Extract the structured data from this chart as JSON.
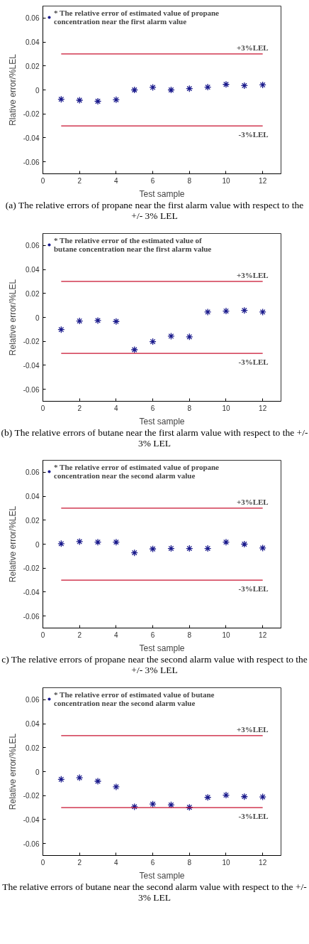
{
  "chart_data": [
    {
      "type": "scatter",
      "title": "(a) The relative errors of propane near the first alarm value with respect to the +/- 3% LEL",
      "xlabel": "Test sample",
      "ylabel": "Rlative error/%LEL",
      "x": [
        1,
        2,
        3,
        4,
        5,
        6,
        7,
        8,
        9,
        10,
        11,
        12
      ],
      "series": [
        {
          "name": "* The relative error of estimated value of propane concentration near the first alarm value",
          "color": "#1a1a8c",
          "marker": "cross",
          "values": [
            -0.0078,
            -0.0086,
            -0.0095,
            -0.0082,
            0,
            0.0021,
            0,
            0.0011,
            0.0023,
            0.0046,
            0.0036,
            0.0042
          ]
        }
      ],
      "ref_lines": [
        {
          "axis": "y",
          "value": 0.03,
          "label": "+3%LEL",
          "color": "#c8102e"
        },
        {
          "axis": "y",
          "value": -0.03,
          "label": "-3%LEL",
          "color": "#c8102e"
        }
      ],
      "xlim": [
        0,
        13
      ],
      "xticks": [
        0,
        2,
        4,
        6,
        8,
        10,
        12
      ],
      "ylim": [
        -0.07,
        0.07
      ],
      "yticks": [
        -0.06,
        -0.04,
        -0.02,
        0,
        0.02,
        0.04,
        0.06
      ],
      "legend": "top left",
      "grid": false
    },
    {
      "type": "scatter",
      "title": "(b) The relative errors of butane near the first alarm value with respect to the +/- 3% LEL",
      "xlabel": "Test sample",
      "ylabel": "Relative error/%LEL",
      "x": [
        1,
        2,
        3,
        4,
        5,
        6,
        7,
        8,
        9,
        10,
        11,
        12
      ],
      "series": [
        {
          "name": "* The relative error of the estimated value of butane concentration near the first alarm value",
          "color": "#1a1a8c",
          "marker": "cross",
          "values": [
            -0.0102,
            -0.003,
            -0.0026,
            -0.0034,
            -0.027,
            -0.0202,
            -0.0157,
            -0.0162,
            0.0045,
            0.0053,
            0.0058,
            0.0045
          ]
        }
      ],
      "ref_lines": [
        {
          "axis": "y",
          "value": 0.03,
          "label": "+3%LEL",
          "color": "#c8102e"
        },
        {
          "axis": "y",
          "value": -0.03,
          "label": "-3%LEL",
          "color": "#c8102e"
        }
      ],
      "xlim": [
        0,
        13
      ],
      "xticks": [
        0,
        2,
        4,
        6,
        8,
        10,
        12
      ],
      "ylim": [
        -0.07,
        0.07
      ],
      "yticks": [
        -0.06,
        -0.04,
        -0.02,
        0,
        0.02,
        0.04,
        0.06
      ],
      "legend": "top left",
      "grid": false
    },
    {
      "type": "scatter",
      "title": "c) The relative errors of propane near the second alarm value with respect to the +/- 3% LEL",
      "xlabel": "Test sample",
      "ylabel": "Relative error/%LEL",
      "x": [
        1,
        2,
        3,
        4,
        5,
        6,
        7,
        8,
        9,
        10,
        11,
        12
      ],
      "series": [
        {
          "name": "* The relative error of estimated value of propane concentration near the second alarm value",
          "color": "#1a1a8c",
          "marker": "cross",
          "values": [
            0.0004,
            0.0021,
            0.0017,
            0.0017,
            -0.0072,
            -0.004,
            -0.0036,
            -0.0036,
            -0.0036,
            0.0017,
            0,
            -0.0032
          ]
        }
      ],
      "ref_lines": [
        {
          "axis": "y",
          "value": 0.03,
          "label": "+3%LEL",
          "color": "#c8102e"
        },
        {
          "axis": "y",
          "value": -0.03,
          "label": "-3%LEL",
          "color": "#c8102e"
        }
      ],
      "xlim": [
        0,
        13
      ],
      "xticks": [
        0,
        2,
        4,
        6,
        8,
        10,
        12
      ],
      "ylim": [
        -0.07,
        0.07
      ],
      "yticks": [
        -0.06,
        -0.04,
        -0.02,
        0,
        0.02,
        0.04,
        0.06
      ],
      "legend": "top left",
      "grid": false
    },
    {
      "type": "scatter",
      "title": "The relative errors of butane near the second alarm value with respect to the +/- 3% LEL",
      "xlabel": "Test sample",
      "ylabel": "Relative error/%LEL",
      "x": [
        1,
        2,
        3,
        4,
        5,
        6,
        7,
        8,
        9,
        10,
        11,
        12
      ],
      "series": [
        {
          "name": "* The relative error of estimated value of butane concentration near the second alarm value",
          "color": "#1a1a8c",
          "marker": "cross",
          "values": [
            -0.0064,
            -0.0051,
            -0.008,
            -0.0127,
            -0.0293,
            -0.0271,
            -0.0278,
            -0.0298,
            -0.0215,
            -0.0196,
            -0.0209,
            -0.0211
          ]
        }
      ],
      "ref_lines": [
        {
          "axis": "y",
          "value": 0.03,
          "label": "+3%LEL",
          "color": "#c8102e"
        },
        {
          "axis": "y",
          "value": -0.03,
          "label": "-3%LEL",
          "color": "#c8102e"
        }
      ],
      "xlim": [
        0,
        13
      ],
      "xticks": [
        0,
        2,
        4,
        6,
        8,
        10,
        12
      ],
      "ylim": [
        -0.07,
        0.07
      ],
      "yticks": [
        -0.06,
        -0.04,
        -0.02,
        0,
        0.02,
        0.04,
        0.06
      ],
      "legend": "top left",
      "grid": false
    }
  ]
}
